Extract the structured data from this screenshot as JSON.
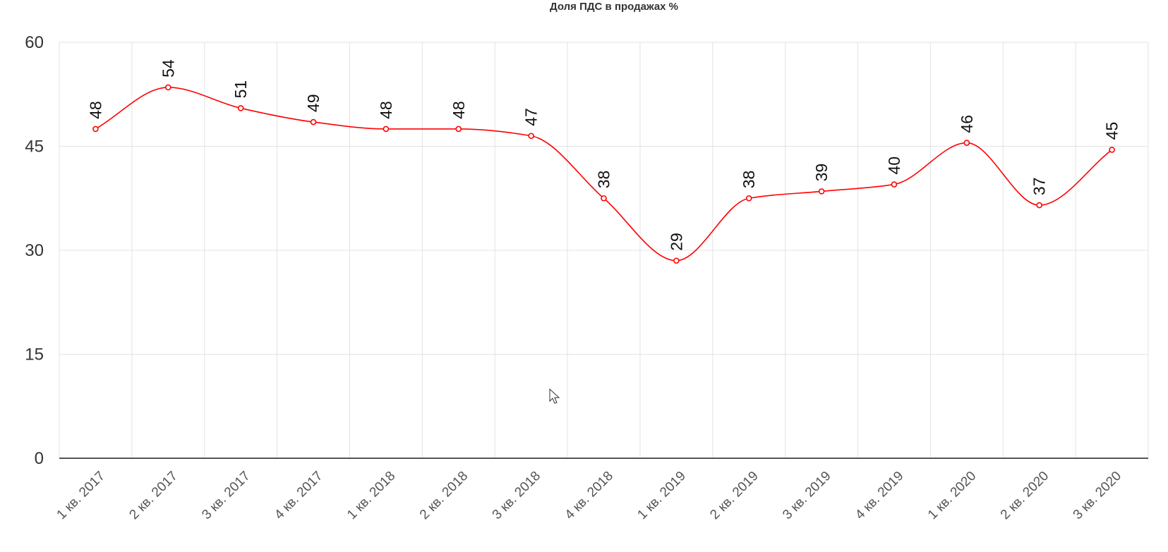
{
  "chart_data": {
    "type": "line",
    "title": "Доля ПДС в продажах %",
    "categories": [
      "1 кв. 2017",
      "2 кв. 2017",
      "3 кв. 2017",
      "4 кв. 2017",
      "1 кв. 2018",
      "2 кв. 2018",
      "3 кв. 2018",
      "4 кв. 2018",
      "1 кв. 2019",
      "2 кв. 2019",
      "3 кв. 2019",
      "4 кв. 2019",
      "1 кв. 2020",
      "2 кв. 2020",
      "3 кв. 2020"
    ],
    "series": [
      {
        "values": [
          47.5,
          53.5,
          50.5,
          48.5,
          47.5,
          47.5,
          46.5,
          37.5,
          28.5,
          37.5,
          38.5,
          39.5,
          45.5,
          36.5,
          44.5
        ],
        "labels": [
          "48",
          "54",
          "51",
          "49",
          "48",
          "48",
          "47",
          "38",
          "29",
          "38",
          "39",
          "40",
          "46",
          "37",
          "45"
        ],
        "color": "#ff0000"
      }
    ],
    "ylim": [
      0,
      60
    ],
    "yticks": [
      "0",
      "15",
      "30",
      "45",
      "60"
    ],
    "xlabel": "",
    "ylabel": "",
    "grid": true,
    "smooth": true
  }
}
